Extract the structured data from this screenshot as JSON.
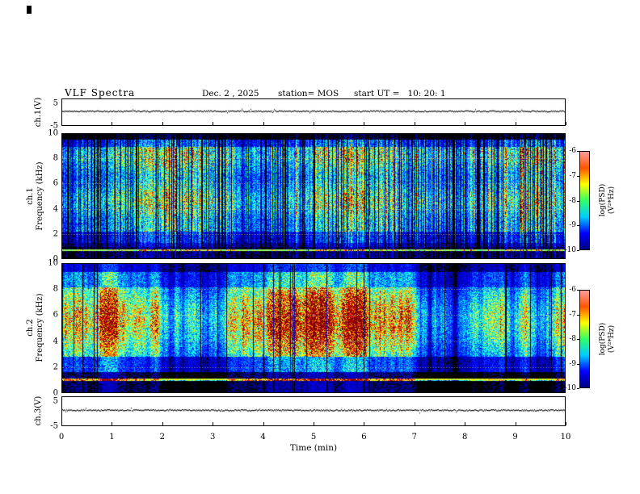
{
  "header": {
    "title": "VLF Spectra",
    "date": "Dec. 2 , 2025",
    "station": "station= MOS",
    "start_ut": "start UT =   10: 20: 1"
  },
  "axes": {
    "x": {
      "label": "Time (min)",
      "min": 0,
      "max": 10,
      "ticks": [
        "0",
        "1",
        "2",
        "3",
        "4",
        "5",
        "6",
        "7",
        "8",
        "9",
        "10"
      ]
    },
    "wave1": {
      "label": "ch.1(V)",
      "min": -5,
      "max": 5,
      "ticks": [
        "5",
        "-5"
      ]
    },
    "spec1": {
      "label": "ch.1\nFrequency (kHz)",
      "min": 0,
      "max": 10,
      "ticks": [
        "10",
        "8",
        "6",
        "4",
        "2",
        "0"
      ]
    },
    "spec2": {
      "label": "ch.2\nFrequency (kHz)",
      "min": 0,
      "max": 10,
      "ticks": [
        "10",
        "8",
        "6",
        "4",
        "2",
        "0"
      ]
    },
    "wave3": {
      "label": "ch.3(V)",
      "min": -5,
      "max": 5,
      "ticks": [
        "5",
        "-5"
      ]
    }
  },
  "colorbars": [
    {
      "label": "log(PSD)(V²*Hz)",
      "ticks": [
        "-6",
        "-7",
        "-8",
        "-9",
        "-10"
      ],
      "min": -10,
      "max": -6,
      "colormap": "jet",
      "stops": [
        "#000080",
        "#0000ff",
        "#00ccff",
        "#33ff66",
        "#ffff00",
        "#ff5500",
        "#ff9e9e"
      ]
    },
    {
      "label": "log(PSD)(V²*Hz)",
      "ticks": [
        "-6",
        "-7",
        "-8",
        "-9",
        "-10"
      ],
      "min": -10,
      "max": -6,
      "colormap": "jet",
      "stops": [
        "#000080",
        "#0000ff",
        "#00ccff",
        "#33ff66",
        "#ffff00",
        "#ff5500",
        "#ff9e9e"
      ]
    }
  ],
  "chart_data": [
    {
      "type": "line",
      "name": "ch.1 voltage waveform",
      "xlabel": "Time (min)",
      "xlim": [
        0,
        10
      ],
      "ylabel": "ch.1(V)",
      "ylim": [
        -5,
        5
      ],
      "x": [
        0,
        10
      ],
      "values": [
        0,
        0
      ],
      "note": "nearly flat trace at about 0 V for the full 10 minute record"
    },
    {
      "type": "heatmap",
      "name": "ch.1 VLF spectrogram",
      "xlabel": "Time (min)",
      "xlim": [
        0,
        10
      ],
      "ylabel": "ch.1 Frequency (kHz)",
      "ylim": [
        0,
        10
      ],
      "x_ticks": [
        0,
        1,
        2,
        3,
        4,
        5,
        6,
        7,
        8,
        9,
        10
      ],
      "y_ticks": [
        0,
        2,
        4,
        6,
        8,
        10
      ],
      "colorbar": {
        "label": "log(PSD)(V²*Hz)",
        "min": -10,
        "max": -6,
        "colormap": "jet"
      },
      "features": [
        "dense vertical broadband impulsive bursts (sferics) spanning ~0.5-9.5 kHz for the whole record",
        "burst power mostly -8 to -7 (cyan/green) with yellow-to-red cores near -6",
        "quiet black band above ~9.5 kHz",
        "persistent narrowband bright line near 0.7 kHz",
        "black inter-burst gaps at about -10",
        "weak patchy blue band between ~1.3 and 2.2 kHz"
      ]
    },
    {
      "type": "heatmap",
      "name": "ch.2 VLF spectrogram",
      "xlabel": "Time (min)",
      "xlim": [
        0,
        10
      ],
      "ylabel": "ch.2 Frequency (kHz)",
      "ylim": [
        0,
        10
      ],
      "x_ticks": [
        0,
        1,
        2,
        3,
        4,
        5,
        6,
        7,
        8,
        9,
        10
      ],
      "y_ticks": [
        0,
        2,
        4,
        6,
        8,
        10
      ],
      "colorbar": {
        "label": "log(PSD)(V²*Hz)",
        "min": -10,
        "max": -6,
        "colormap": "jet"
      },
      "features": [
        "more diffuse broadband emission, green/yellow (about -7.5 to -7) between ~3 and 8 kHz",
        "blue fringes toward 8-10 kHz and 2-3 kHz",
        "persistent narrowband line near 1 kHz",
        "dark quiet band below ~1.5 kHz",
        "thin vertical black dropouts throughout"
      ]
    },
    {
      "type": "line",
      "name": "ch.3 voltage waveform",
      "xlabel": "Time (min)",
      "xlim": [
        0,
        10
      ],
      "ylabel": "ch.3(V)",
      "ylim": [
        -5,
        5
      ],
      "x": [
        0,
        10
      ],
      "values": [
        0,
        0
      ],
      "note": "nearly flat trace at about 0 V for the full 10 minute record"
    }
  ]
}
